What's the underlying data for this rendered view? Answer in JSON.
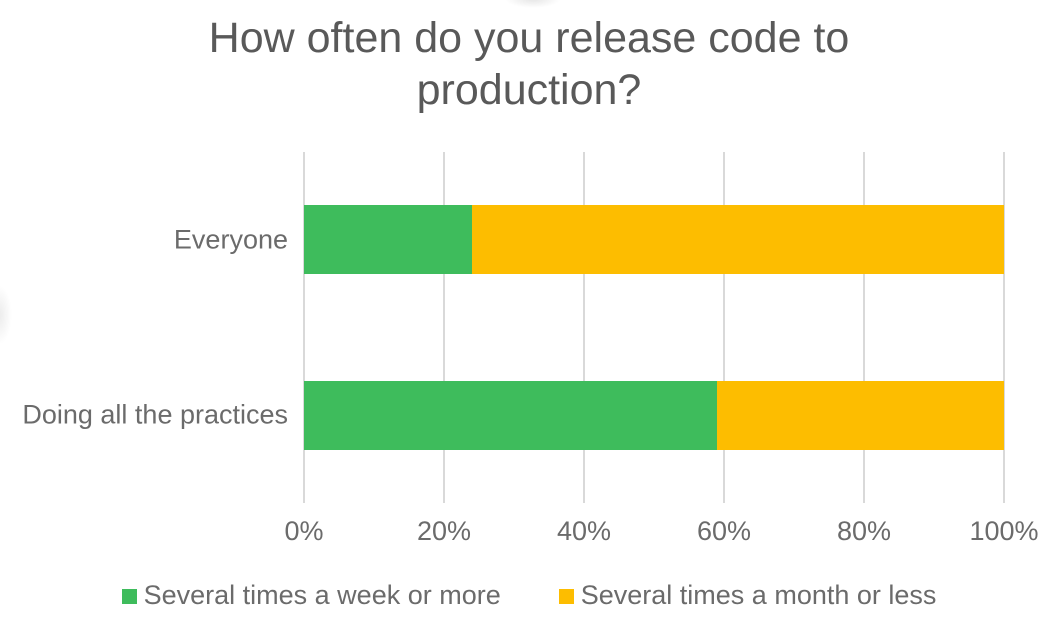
{
  "chart_data": {
    "type": "bar",
    "orientation": "horizontal",
    "stacked": true,
    "title": "How often do you release code to production?",
    "categories": [
      "Everyone",
      "Doing all the practices"
    ],
    "series": [
      {
        "name": "Several times a week or more",
        "color": "#3EBC5C",
        "values": [
          24,
          59
        ]
      },
      {
        "name": "Several times a month or less",
        "color": "#FDBD00",
        "values": [
          76,
          41
        ]
      }
    ],
    "x_axis": {
      "min": 0,
      "max": 100,
      "unit": "%",
      "tick_labels": [
        "0%",
        "20%",
        "40%",
        "60%",
        "80%",
        "100%"
      ]
    },
    "grid": true,
    "legend_position": "bottom",
    "colors": {
      "title_text": "#595959",
      "label_text": "#6B6B6B",
      "gridline": "#D9D9D9",
      "background": "#FFFFFF"
    }
  }
}
